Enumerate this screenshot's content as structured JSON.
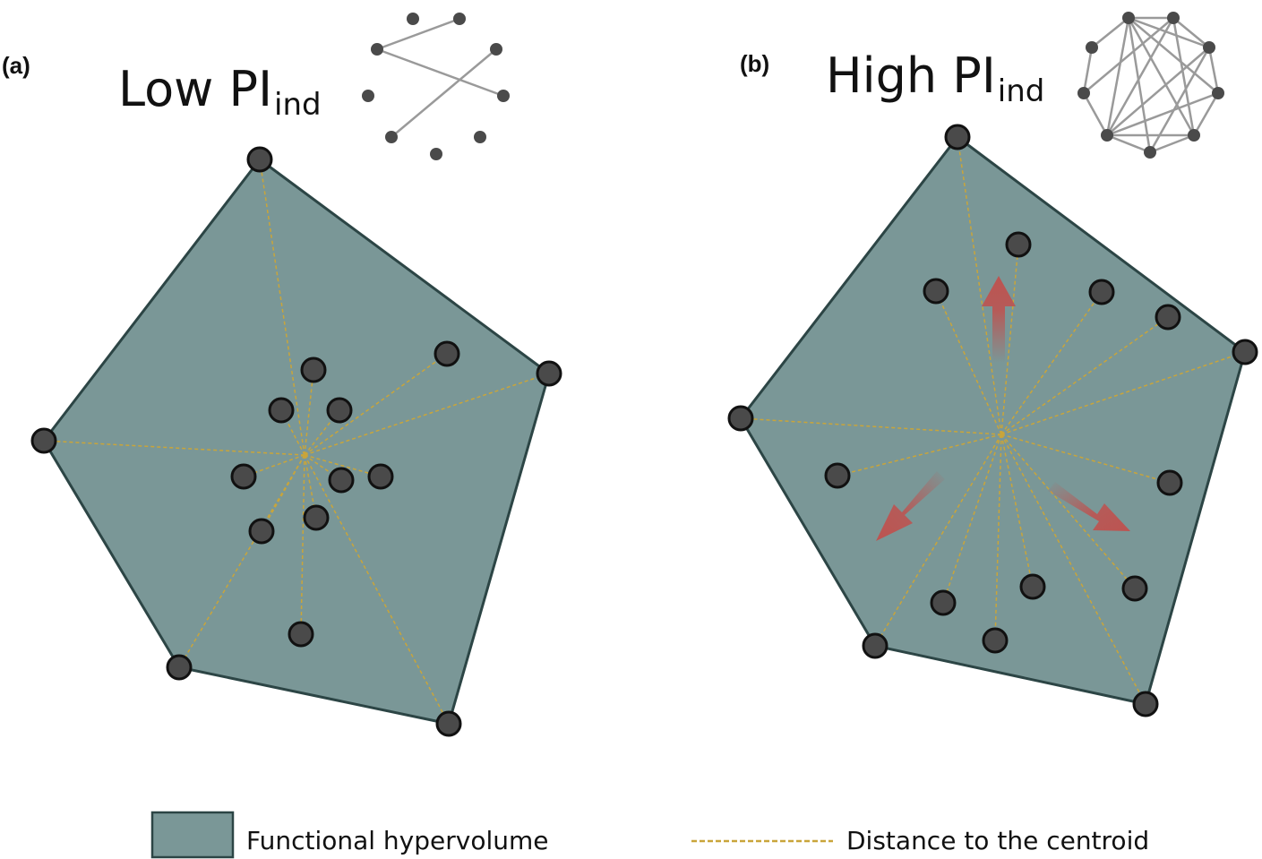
{
  "panels": [
    {
      "tag": "(a)",
      "title_main": "Low PI",
      "title_sub": "ind",
      "network": "sparse-network-icon"
    },
    {
      "tag": "(b)",
      "title_main": "High PI",
      "title_sub": "ind",
      "network": "dense-network-icon"
    }
  ],
  "legend": {
    "hypervolume_label": "Functional hypervolume",
    "distance_label": "Distance to the centroid"
  },
  "colors": {
    "hypervolume_fill": "#7a9797",
    "hypervolume_stroke": "#2c4545",
    "centroid_line": "#c9a53a",
    "point_fill": "#4a4a4a",
    "arrow": "#c0504d",
    "network_edge": "#9a9a9a"
  },
  "icons": [
    "sparse-network-icon",
    "dense-network-icon",
    "expansion-arrow-icon"
  ]
}
